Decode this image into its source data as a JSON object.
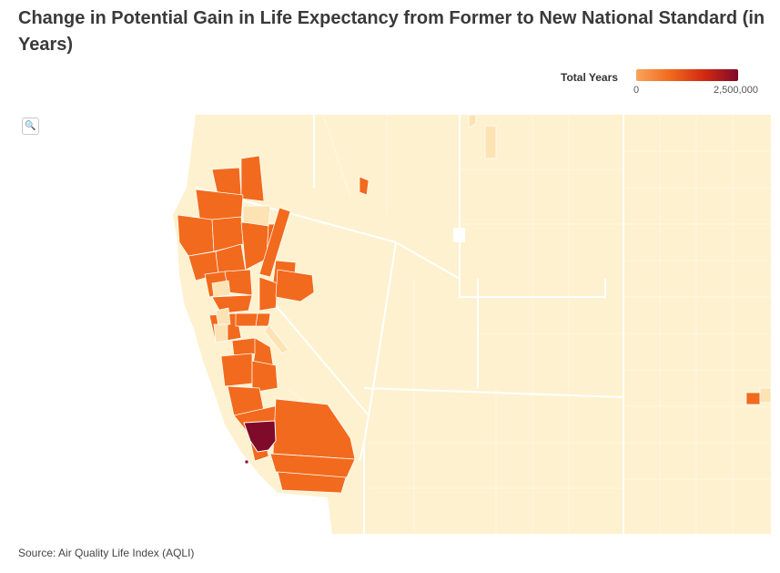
{
  "title": "Change in Potential Gain in Life Expectancy from Former to New National Standard (in Years)",
  "legend": {
    "title": "Total Years",
    "min_label": "0",
    "max_label": "2,500,000",
    "scale_min": 0,
    "scale_max": 2500000,
    "colors": [
      "#f8a45a",
      "#f06a1e",
      "#d12a12",
      "#7f0a2a"
    ]
  },
  "zoom_button": {
    "icon": "magnifier-icon",
    "glyph": "🔍"
  },
  "map_style": {
    "base_fill": "#fef1cf",
    "light_fill": "#fde3b4",
    "mid_fill": "#f89a4d",
    "high_fill": "#f26a1d",
    "max_fill": "#7f0a2a",
    "ocean_fill": "#ffffff",
    "boundary_color": "#ffffff"
  },
  "source": "Source: Air Quality Life Index (AQLI)"
}
